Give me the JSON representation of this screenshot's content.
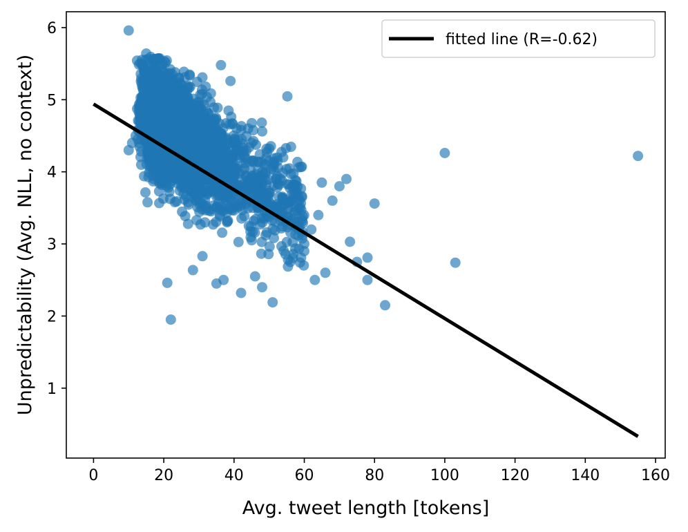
{
  "chart_data": {
    "type": "scatter",
    "title": "",
    "xlabel": "Avg. tweet length [tokens]",
    "ylabel": "Unpredictability (Avg. NLL, no context)",
    "xlim": [
      -7.75,
      162.75
    ],
    "ylim": [
      0.03,
      6.22
    ],
    "xticks": [
      0,
      20,
      40,
      60,
      80,
      100,
      120,
      140,
      160
    ],
    "yticks": [
      1,
      2,
      3,
      4,
      5,
      6
    ],
    "grid": false,
    "legend": {
      "position": "upper right",
      "entries": [
        "fitted line (R=-0.62)"
      ]
    },
    "colors": {
      "points": "#1f77b4",
      "fit_line": "#000000"
    },
    "series": [
      {
        "type": "line",
        "role": "fitted line",
        "x": [
          0,
          155
        ],
        "y": [
          4.94,
          0.33
        ]
      },
      {
        "type": "scatter",
        "note": "dense cloud of several thousand points; representative core points listed",
        "x": [
          10,
          22,
          39,
          31,
          15,
          16,
          17,
          18,
          19,
          20,
          21,
          22,
          23,
          25,
          27,
          28,
          30,
          33,
          35,
          14,
          13,
          12,
          11,
          10,
          26,
          29,
          32,
          36,
          38,
          41,
          43,
          45,
          47,
          49,
          52,
          55,
          58,
          60,
          62,
          64,
          65,
          66,
          68,
          70,
          72,
          73,
          75,
          78,
          80,
          78,
          83,
          100,
          103,
          155,
          51,
          42,
          21,
          35,
          37,
          46,
          48,
          56,
          60,
          63,
          48,
          50,
          54,
          42,
          44,
          40
        ],
        "y": [
          5.96,
          1.95,
          5.26,
          5.31,
          5.64,
          5.5,
          5.38,
          5.2,
          5.0,
          4.9,
          4.8,
          4.7,
          4.6,
          4.5,
          4.4,
          4.3,
          4.2,
          4.1,
          4.0,
          4.9,
          4.7,
          4.5,
          4.4,
          4.3,
          3.9,
          3.7,
          3.5,
          3.4,
          3.3,
          3.9,
          4.2,
          4.4,
          3.8,
          3.6,
          3.5,
          3.3,
          3.6,
          3.0,
          3.2,
          3.4,
          3.85,
          2.6,
          3.6,
          3.8,
          3.9,
          3.03,
          2.75,
          2.81,
          3.56,
          2.5,
          2.15,
          4.26,
          2.74,
          4.22,
          2.19,
          2.32,
          2.46,
          2.45,
          2.5,
          2.55,
          2.4,
          2.75,
          2.9,
          2.5,
          4.56,
          4.32,
          4.2,
          4.58,
          4.6,
          4.45
        ]
      }
    ]
  }
}
